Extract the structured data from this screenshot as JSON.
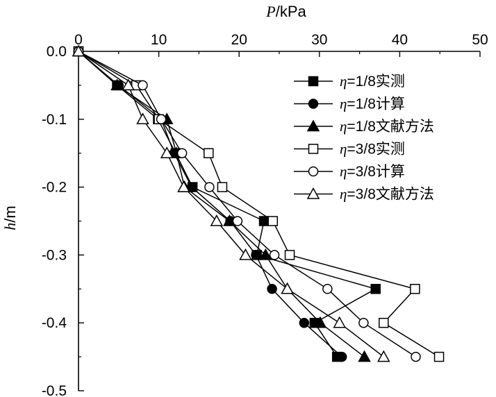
{
  "chart_data": {
    "type": "line",
    "title": "",
    "xlabel": "P/kPa",
    "xlabel_var": "P",
    "xlabel_unit": "/kPa",
    "ylabel": "h/m",
    "ylabel_var": "h",
    "ylabel_unit": "/m",
    "x_axis_position": "top",
    "xlim": [
      0,
      50
    ],
    "ylim": [
      -0.5,
      0.0
    ],
    "x_ticks": [
      0,
      10,
      20,
      30,
      40,
      50
    ],
    "x_tick_labels": [
      "0",
      "10",
      "20",
      "30",
      "40",
      "50"
    ],
    "y_ticks": [
      0.0,
      -0.1,
      -0.2,
      -0.3,
      -0.4,
      -0.5
    ],
    "y_tick_labels": [
      "0.0",
      "-0.1",
      "-0.2",
      "-0.3",
      "-0.4",
      "-0.5"
    ],
    "grid": false,
    "legend_position": "top-right",
    "series": [
      {
        "name": "η=1/8实测",
        "name_var": "η",
        "name_rest": "=1/8实测",
        "marker": "square",
        "filled": true,
        "points": [
          [
            0.0,
            0.0
          ],
          [
            4.8,
            -0.05
          ],
          [
            9.9,
            -0.1
          ],
          [
            12.1,
            -0.15
          ],
          [
            14.2,
            -0.2
          ],
          [
            23.1,
            -0.25
          ],
          [
            22.2,
            -0.3
          ],
          [
            37.0,
            -0.35
          ],
          [
            29.4,
            -0.4
          ],
          [
            32.2,
            -0.45
          ]
        ]
      },
      {
        "name": "η=1/8计算",
        "name_var": "η",
        "name_rest": "=1/8计算",
        "marker": "circle",
        "filled": true,
        "points": [
          [
            0.0,
            0.0
          ],
          [
            5.0,
            -0.05
          ],
          [
            10.3,
            -0.1
          ],
          [
            11.9,
            -0.15
          ],
          [
            14.1,
            -0.2
          ],
          [
            18.9,
            -0.25
          ],
          [
            22.1,
            -0.3
          ],
          [
            24.1,
            -0.35
          ],
          [
            28.1,
            -0.4
          ],
          [
            32.8,
            -0.45
          ]
        ]
      },
      {
        "name": "η=1/8文献方法",
        "name_var": "η",
        "name_rest": "=1/8文献方法",
        "marker": "triangle",
        "filled": true,
        "points": [
          [
            0.0,
            0.0
          ],
          [
            4.8,
            -0.05
          ],
          [
            11.0,
            -0.1
          ],
          [
            12.2,
            -0.15
          ],
          [
            13.2,
            -0.2
          ],
          [
            18.8,
            -0.25
          ],
          [
            23.3,
            -0.3
          ],
          [
            26.0,
            -0.35
          ],
          [
            30.1,
            -0.4
          ],
          [
            35.6,
            -0.45
          ]
        ]
      },
      {
        "name": "η=3/8实测",
        "name_var": "η",
        "name_rest": "=3/8实测",
        "marker": "square",
        "filled": false,
        "points": [
          [
            0.0,
            0.0
          ],
          [
            7.2,
            -0.05
          ],
          [
            10.0,
            -0.1
          ],
          [
            16.2,
            -0.15
          ],
          [
            17.9,
            -0.2
          ],
          [
            24.2,
            -0.25
          ],
          [
            26.3,
            -0.3
          ],
          [
            41.9,
            -0.35
          ],
          [
            38.0,
            -0.4
          ],
          [
            44.9,
            -0.45
          ]
        ]
      },
      {
        "name": "η=3/8计算",
        "name_var": "η",
        "name_rest": "=3/8计算",
        "marker": "circle",
        "filled": false,
        "points": [
          [
            0.0,
            0.0
          ],
          [
            8.0,
            -0.05
          ],
          [
            10.3,
            -0.1
          ],
          [
            12.9,
            -0.15
          ],
          [
            16.3,
            -0.2
          ],
          [
            19.8,
            -0.25
          ],
          [
            24.4,
            -0.3
          ],
          [
            31.0,
            -0.35
          ],
          [
            35.5,
            -0.4
          ],
          [
            42.0,
            -0.45
          ]
        ]
      },
      {
        "name": "η=3/8文献方法",
        "name_var": "η",
        "name_rest": "=3/8文献方法",
        "marker": "triangle",
        "filled": false,
        "points": [
          [
            0.0,
            0.0
          ],
          [
            6.2,
            -0.05
          ],
          [
            8.0,
            -0.1
          ],
          [
            11.0,
            -0.15
          ],
          [
            13.1,
            -0.2
          ],
          [
            17.2,
            -0.25
          ],
          [
            20.8,
            -0.3
          ],
          [
            26.0,
            -0.35
          ],
          [
            32.5,
            -0.4
          ],
          [
            38.0,
            -0.45
          ]
        ]
      }
    ]
  }
}
